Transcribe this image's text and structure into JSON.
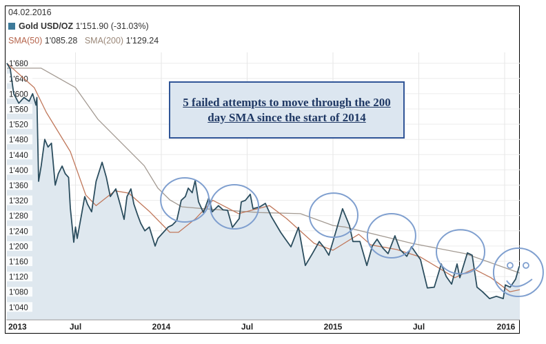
{
  "header": {
    "date": "04.02.2016",
    "instrument": "Gold USD/OZ",
    "price": "1'151.90",
    "change": "(-31.03%)",
    "sma50_label": "SMA(50)",
    "sma50_value": "1'085.28",
    "sma200_label": "SMA(200)",
    "sma200_value": "1'129.24"
  },
  "annotation_text": "5 failed attempts to move through the 200 day SMA since the start of 2014",
  "colors": {
    "price": "#2b4d5e",
    "fill": "#dfe8ef",
    "sma50": "#c0775a",
    "sma200": "#a39a92",
    "circle": "#7f9fcf"
  },
  "chart_data": {
    "type": "line",
    "title": "Gold USD/OZ",
    "xlabel": "",
    "ylabel": "",
    "xlim": [
      2013.1,
      2016.095
    ],
    "ylim": [
      1000,
      1700
    ],
    "grid": true,
    "x_ticks": [
      {
        "value": 2013.0,
        "label": "2013"
      },
      {
        "value": 2013.5,
        "label": "Jul"
      },
      {
        "value": 2014.0,
        "label": "2014"
      },
      {
        "value": 2014.5,
        "label": "Jul"
      },
      {
        "value": 2015.0,
        "label": "2015"
      },
      {
        "value": 2015.5,
        "label": "Jul"
      },
      {
        "value": 2016.0,
        "label": "2016"
      }
    ],
    "y_ticks": [
      {
        "value": 1680,
        "label": "1'680"
      },
      {
        "value": 1640,
        "label": "1'640"
      },
      {
        "value": 1600,
        "label": "1'600"
      },
      {
        "value": 1560,
        "label": "1'560"
      },
      {
        "value": 1520,
        "label": "1'520"
      },
      {
        "value": 1480,
        "label": "1'480"
      },
      {
        "value": 1440,
        "label": "1'440"
      },
      {
        "value": 1400,
        "label": "1'400"
      },
      {
        "value": 1360,
        "label": "1'360"
      },
      {
        "value": 1320,
        "label": "1'320"
      },
      {
        "value": 1280,
        "label": "1'280"
      },
      {
        "value": 1240,
        "label": "1'240"
      },
      {
        "value": 1200,
        "label": "1'200"
      },
      {
        "value": 1160,
        "label": "1'160"
      },
      {
        "value": 1120,
        "label": "1'120"
      },
      {
        "value": 1080,
        "label": "1'080"
      },
      {
        "value": 1040,
        "label": "1'040"
      }
    ],
    "series": [
      {
        "name": "Gold USD/OZ",
        "points": [
          [
            2013.1,
            1680
          ],
          [
            2013.12,
            1665
          ],
          [
            2013.14,
            1600
          ],
          [
            2013.17,
            1575
          ],
          [
            2013.2,
            1590
          ],
          [
            2013.23,
            1580
          ],
          [
            2013.25,
            1600
          ],
          [
            2013.27,
            1570
          ],
          [
            2013.275,
            1590
          ],
          [
            2013.285,
            1370
          ],
          [
            2013.3,
            1410
          ],
          [
            2013.321,
            1480
          ],
          [
            2013.34,
            1460
          ],
          [
            2013.36,
            1470
          ],
          [
            2013.382,
            1360
          ],
          [
            2013.4,
            1390
          ],
          [
            2013.422,
            1410
          ],
          [
            2013.44,
            1390
          ],
          [
            2013.46,
            1380
          ],
          [
            2013.47,
            1300
          ],
          [
            2013.49,
            1210
          ],
          [
            2013.5,
            1250
          ],
          [
            2013.51,
            1220
          ],
          [
            2013.534,
            1280
          ],
          [
            2013.554,
            1330
          ],
          [
            2013.57,
            1310
          ],
          [
            2013.594,
            1290
          ],
          [
            2013.62,
            1370
          ],
          [
            2013.655,
            1420
          ],
          [
            2013.68,
            1380
          ],
          [
            2013.703,
            1330
          ],
          [
            2013.735,
            1350
          ],
          [
            2013.76,
            1310
          ],
          [
            2013.783,
            1270
          ],
          [
            2013.8,
            1330
          ],
          [
            2013.823,
            1350
          ],
          [
            2013.84,
            1310
          ],
          [
            2013.863,
            1280
          ],
          [
            2013.88,
            1260
          ],
          [
            2013.904,
            1240
          ],
          [
            2013.93,
            1250
          ],
          [
            2013.964,
            1200
          ],
          [
            2013.98,
            1220
          ],
          [
            2014.012,
            1236
          ],
          [
            2014.04,
            1250
          ],
          [
            2014.064,
            1255
          ],
          [
            2014.09,
            1267
          ],
          [
            2014.116,
            1320
          ],
          [
            2014.14,
            1330
          ],
          [
            2014.157,
            1352
          ],
          [
            2014.18,
            1340
          ],
          [
            2014.197,
            1372
          ],
          [
            2014.217,
            1316
          ],
          [
            2014.245,
            1288
          ],
          [
            2014.277,
            1327
          ],
          [
            2014.297,
            1290
          ],
          [
            2014.333,
            1306
          ],
          [
            2014.36,
            1295
          ],
          [
            2014.386,
            1294
          ],
          [
            2014.414,
            1249
          ],
          [
            2014.454,
            1272
          ],
          [
            2014.466,
            1316
          ],
          [
            2014.49,
            1320
          ],
          [
            2014.518,
            1336
          ],
          [
            2014.534,
            1298
          ],
          [
            2014.574,
            1303
          ],
          [
            2014.606,
            1312
          ],
          [
            2014.639,
            1279
          ],
          [
            2014.695,
            1236
          ],
          [
            2014.72,
            1220
          ],
          [
            2014.755,
            1198
          ],
          [
            2014.799,
            1249
          ],
          [
            2014.839,
            1149
          ],
          [
            2014.88,
            1180
          ],
          [
            2014.92,
            1212
          ],
          [
            2014.95,
            1195
          ],
          [
            2014.976,
            1176
          ],
          [
            2015.0,
            1212
          ],
          [
            2015.056,
            1298
          ],
          [
            2015.096,
            1254
          ],
          [
            2015.116,
            1212
          ],
          [
            2015.157,
            1212
          ],
          [
            2015.197,
            1149
          ],
          [
            2015.229,
            1200
          ],
          [
            2015.257,
            1218
          ],
          [
            2015.29,
            1195
          ],
          [
            2015.321,
            1180
          ],
          [
            2015.361,
            1227
          ],
          [
            2015.39,
            1191
          ],
          [
            2015.43,
            1173
          ],
          [
            2015.458,
            1198
          ],
          [
            2015.51,
            1164
          ],
          [
            2015.55,
            1090
          ],
          [
            2015.59,
            1092
          ],
          [
            2015.631,
            1153
          ],
          [
            2015.66,
            1120
          ],
          [
            2015.691,
            1100
          ],
          [
            2015.723,
            1153
          ],
          [
            2015.739,
            1117
          ],
          [
            2015.783,
            1182
          ],
          [
            2015.811,
            1176
          ],
          [
            2015.839,
            1092
          ],
          [
            2015.871,
            1080
          ],
          [
            2015.912,
            1062
          ],
          [
            2015.952,
            1068
          ],
          [
            2015.992,
            1062
          ],
          [
            2016.004,
            1098
          ],
          [
            2016.032,
            1092
          ],
          [
            2016.064,
            1113
          ],
          [
            2016.084,
            1145
          ],
          [
            2016.095,
            1152
          ]
        ]
      },
      {
        "name": "SMA(50)",
        "points": [
          [
            2013.1,
            1680
          ],
          [
            2013.26,
            1616
          ],
          [
            2013.33,
            1551
          ],
          [
            2013.47,
            1448
          ],
          [
            2013.56,
            1334
          ],
          [
            2013.62,
            1306
          ],
          [
            2013.73,
            1345
          ],
          [
            2013.81,
            1339
          ],
          [
            2013.93,
            1291
          ],
          [
            2014.05,
            1236
          ],
          [
            2014.1,
            1236
          ],
          [
            2014.2,
            1272
          ],
          [
            2014.3,
            1320
          ],
          [
            2014.45,
            1285
          ],
          [
            2014.63,
            1306
          ],
          [
            2014.73,
            1272
          ],
          [
            2014.89,
            1207
          ],
          [
            2015.0,
            1189
          ],
          [
            2015.15,
            1231
          ],
          [
            2015.22,
            1203
          ],
          [
            2015.37,
            1191
          ],
          [
            2015.51,
            1171
          ],
          [
            2015.71,
            1117
          ],
          [
            2015.82,
            1140
          ],
          [
            2015.92,
            1117
          ],
          [
            2016.03,
            1080
          ],
          [
            2016.095,
            1086
          ]
        ]
      },
      {
        "name": "SMA(200)",
        "points": [
          [
            2013.1,
            1667
          ],
          [
            2013.3,
            1667
          ],
          [
            2013.5,
            1616
          ],
          [
            2013.63,
            1533
          ],
          [
            2013.9,
            1411
          ],
          [
            2013.98,
            1352
          ],
          [
            2014.05,
            1321
          ],
          [
            2014.12,
            1303
          ],
          [
            2014.25,
            1298
          ],
          [
            2014.57,
            1288
          ],
          [
            2014.81,
            1285
          ],
          [
            2015.0,
            1254
          ],
          [
            2015.07,
            1250
          ],
          [
            2015.46,
            1207
          ],
          [
            2015.77,
            1180
          ],
          [
            2016.095,
            1128
          ]
        ]
      }
    ],
    "annotations": {
      "circles": [
        [
          2014.137,
          1321
        ],
        [
          2014.426,
          1303
        ],
        [
          2015.004,
          1281
        ],
        [
          2015.341,
          1227
        ],
        [
          2015.743,
          1185
        ]
      ],
      "smiley": [
        2016.08,
        1131
      ]
    }
  }
}
